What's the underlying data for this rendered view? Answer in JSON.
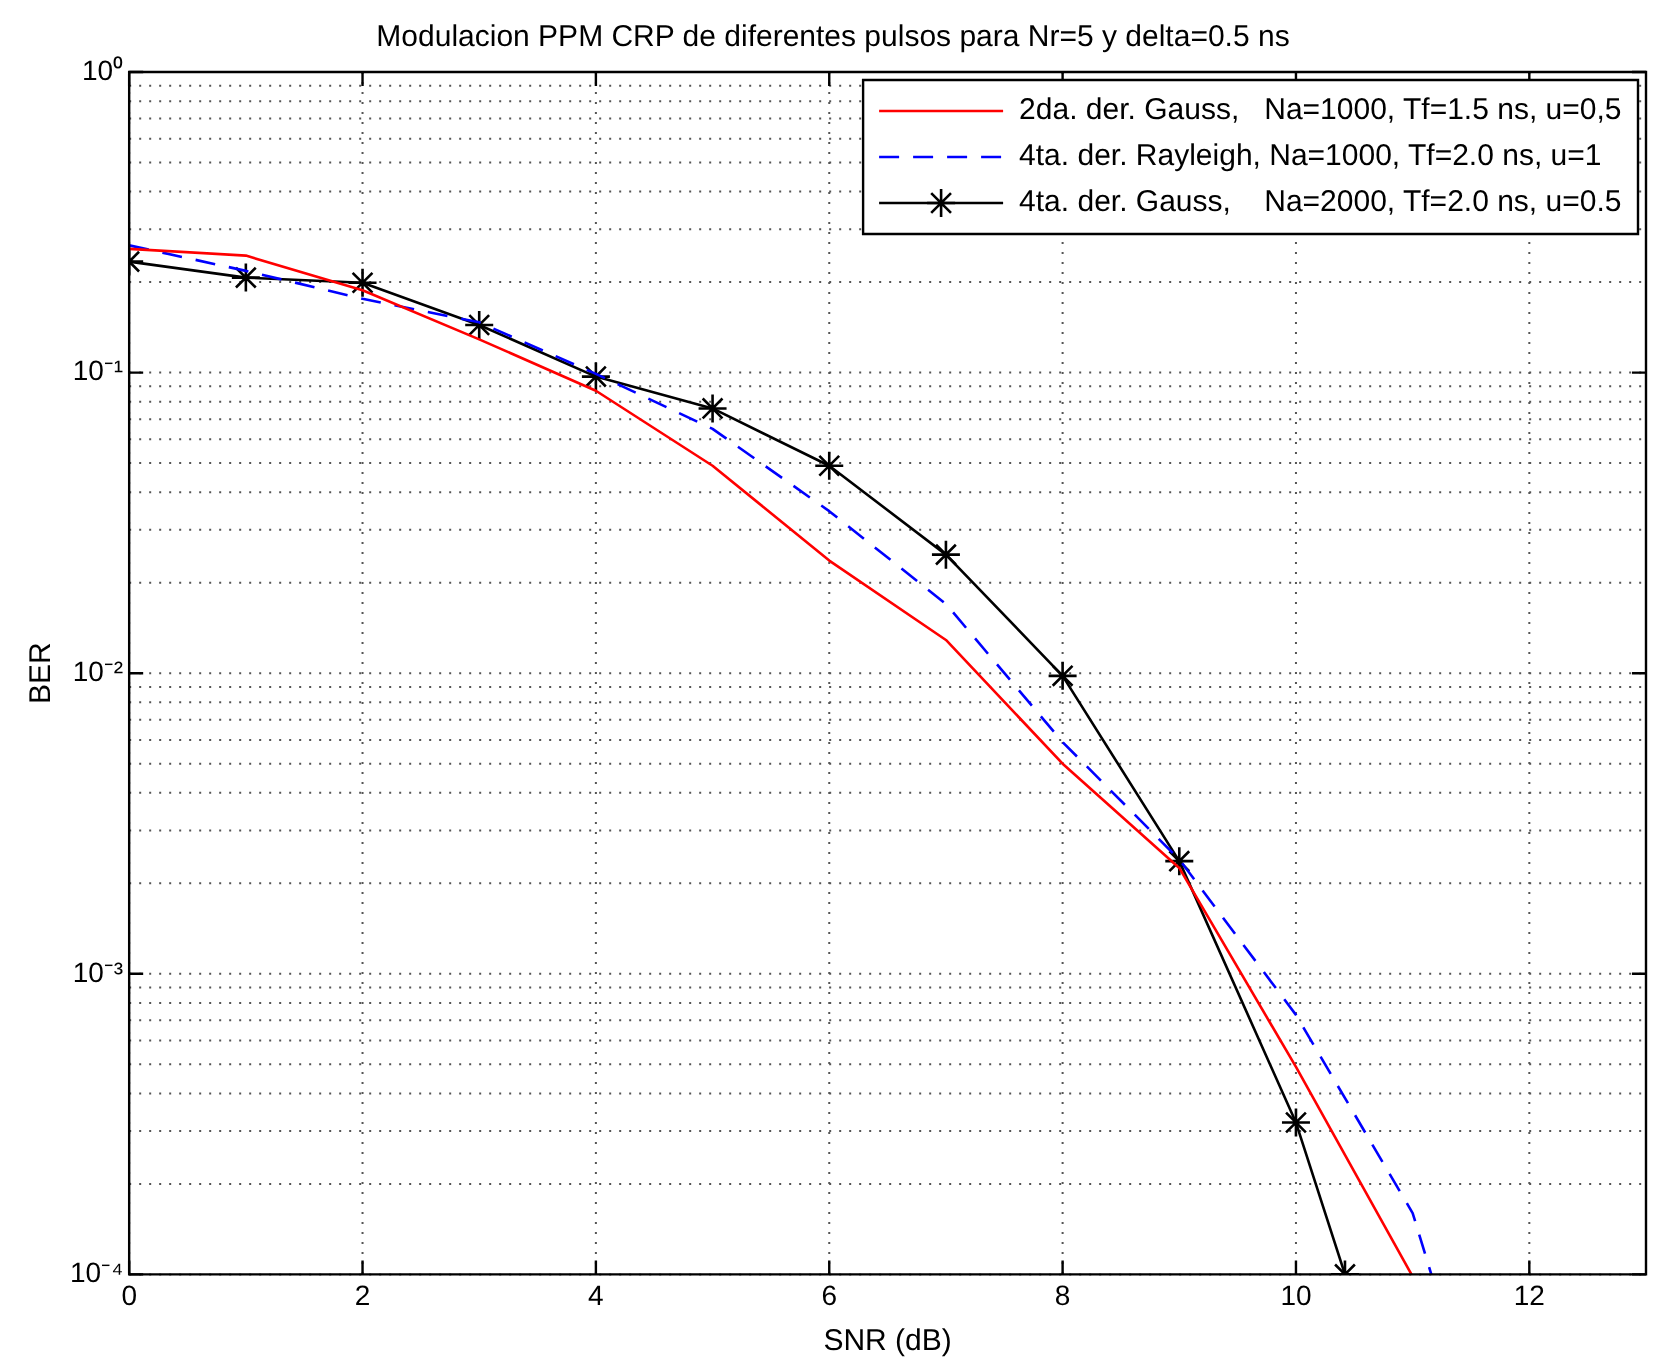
{
  "chart_data": {
    "type": "line",
    "title": "Modulacion PPM CRP de diferentes pulsos para Nr=5 y delta=0.5 ns",
    "xlabel": "SNR (dB)",
    "ylabel": "BER",
    "series": [
      {
        "name": "2da. der. Gauss,   Na=1000, Tf=1.5 ns, u=0,5",
        "color": "#ff0000",
        "line_style": "solid",
        "marker": "none",
        "x": [
          0,
          1,
          2,
          3,
          4,
          5,
          6,
          7,
          8,
          9,
          10,
          10.99
        ],
        "values": [
          0.258,
          0.245,
          0.188,
          0.129,
          0.087,
          0.049,
          0.0237,
          0.0129,
          0.005,
          0.00225,
          0.00049,
          0.0001
        ]
      },
      {
        "name": "4ta. der. Rayleigh, Na=1000, Tf=2.0 ns, u=1",
        "color": "#0000ff",
        "line_style": "dashed",
        "marker": "none",
        "x": [
          0,
          1,
          2,
          3,
          4,
          5,
          6,
          7,
          8,
          9,
          10,
          11,
          11.16
        ],
        "values": [
          0.265,
          0.218,
          0.176,
          0.147,
          0.099,
          0.065,
          0.0346,
          0.017,
          0.0059,
          0.0024,
          0.00073,
          0.00016,
          0.0001
        ]
      },
      {
        "name": "4ta. der. Gauss,    Na=2000, Tf=2.0 ns, u=0.5",
        "color": "#000000",
        "line_style": "solid",
        "marker": "cross",
        "x": [
          0,
          1,
          2,
          3,
          4,
          5,
          6,
          7,
          8,
          9,
          10,
          10.42
        ],
        "values": [
          0.234,
          0.207,
          0.199,
          0.144,
          0.097,
          0.076,
          0.049,
          0.0248,
          0.0098,
          0.00237,
          0.00032,
          0.0001
        ]
      }
    ],
    "log": "y",
    "xlim": [
      0,
      13
    ],
    "xticks": [
      0,
      2,
      4,
      6,
      8,
      10,
      12
    ],
    "ylim": [
      0.0001,
      1
    ],
    "yticks": [
      {
        "value": 0.0001,
        "label": "10⁻⁴"
      },
      {
        "value": 0.001,
        "label": "10⁻³"
      },
      {
        "value": 0.01,
        "label": "10⁻²"
      },
      {
        "value": 0.1,
        "label": "10⁻¹"
      },
      {
        "value": 1,
        "label": "10⁰"
      }
    ],
    "grid": true,
    "legend": "top right"
  }
}
